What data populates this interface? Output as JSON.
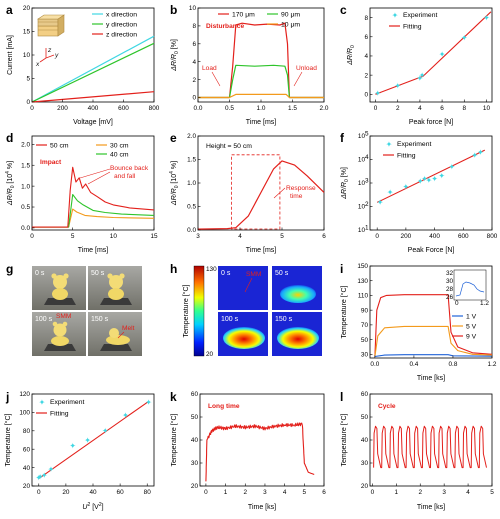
{
  "colors": {
    "red": "#e3201b",
    "green": "#2ec42b",
    "orange": "#f39a1c",
    "cyan": "#40d7e3",
    "blue": "#2063d8",
    "navy": "#1a1aa0",
    "dark": "#1a1a1a"
  },
  "panels": {
    "a": {
      "label": "a",
      "xlabel": "Voltage [mV]",
      "ylabel": "Current [mA]",
      "xticks": [
        "0",
        "200",
        "400",
        "600",
        "800"
      ],
      "yticks": [
        "0",
        "5",
        "10",
        "15",
        "20"
      ],
      "legend": [
        "x direction",
        "y direction",
        "z direction"
      ],
      "axes": {
        "x": "x",
        "y": "y",
        "z": "z"
      }
    },
    "b": {
      "label": "b",
      "title": "Disturbance",
      "xlabel": "Time [ms]",
      "ylabel": "ΔR/R",
      "ylabel_sub": "0",
      "ylabel_unit": " [%]",
      "xticks": [
        "0.0",
        "0.5",
        "1.0",
        "1.5",
        "2.0"
      ],
      "yticks": [
        "0",
        "2",
        "4",
        "6",
        "8",
        "10"
      ],
      "legend": [
        "170 μm",
        "90 μm",
        "10 μm"
      ],
      "annotations": [
        "Load",
        "Unload"
      ]
    },
    "c": {
      "label": "c",
      "xlabel": "Peak force [N]",
      "ylabel": "ΔR/R",
      "ylabel_sub": "0",
      "xticks": [
        "0",
        "2",
        "4",
        "6",
        "8",
        "10"
      ],
      "yticks": [
        "0",
        "2",
        "4",
        "6",
        "8"
      ],
      "legend": [
        "Experiment",
        "Fitting"
      ]
    },
    "d": {
      "label": "d",
      "title": "Impact",
      "xlabel": "Time [ms]",
      "ylabel": "ΔR/R",
      "ylabel_sub": "0",
      "ylabel_unit": " [10",
      "ylabel_exp": "4",
      "ylabel_end": " %]",
      "xticks": [
        "0",
        "5",
        "10",
        "15"
      ],
      "yticks": [
        "0.0",
        "0.5",
        "1.0",
        "1.5",
        "2.0"
      ],
      "legend": [
        "50 cm",
        "30 cm",
        "40 cm"
      ],
      "annotations": [
        "Bounce back",
        "and fall"
      ]
    },
    "e": {
      "label": "e",
      "title": "Height = 50 cm",
      "xlabel": "Time [ms]",
      "ylabel": "ΔR/R",
      "ylabel_sub": "0",
      "ylabel_unit": " [10",
      "ylabel_exp": "4",
      "ylabel_end": " %]",
      "xticks": [
        "3",
        "4",
        "5",
        "6"
      ],
      "yticks": [
        "0.0",
        "0.5",
        "1.0",
        "1.5",
        "2.0"
      ],
      "annotations": [
        "Response",
        "time"
      ]
    },
    "f": {
      "label": "f",
      "xlabel": "Peak Force [N]",
      "ylabel": "ΔR/R",
      "ylabel_sub": "0",
      "ylabel_unit": " [%]",
      "xticks": [
        "0",
        "200",
        "400",
        "600",
        "800"
      ],
      "yticks": [
        "10",
        "10",
        "10",
        "10",
        "10"
      ],
      "ytick_exps": [
        "1",
        "2",
        "3",
        "4",
        "5"
      ],
      "legend": [
        "Experiment",
        "Fitting"
      ]
    },
    "g": {
      "label": "g",
      "photo_labels": [
        "0 s",
        "50 s",
        "100 s",
        "150 s"
      ],
      "annotations": [
        "SMM",
        "Melt"
      ]
    },
    "h": {
      "label": "h",
      "colorbar_label": "Temperature [°C]",
      "colorbar_ticks": [
        "130",
        "20"
      ],
      "photo_labels": [
        "0 s",
        "50 s",
        "100 s",
        "150 s"
      ],
      "annotations": [
        "SMM"
      ]
    },
    "i": {
      "label": "i",
      "xlabel": "Time [ks]",
      "ylabel": "Temperature [°C]",
      "xticks": [
        "0.0",
        "0.4",
        "0.8",
        "1.2"
      ],
      "yticks": [
        "30",
        "50",
        "70",
        "90",
        "110",
        "130",
        "150"
      ],
      "legend": [
        "1 V",
        "5 V",
        "9 V"
      ],
      "inset_xticks": [
        "0",
        "1.2"
      ],
      "inset_yticks": [
        "26",
        "28",
        "30",
        "32"
      ]
    },
    "j": {
      "label": "j",
      "xlabel": "U",
      "xlabel_exp": "2",
      "xlabel_unit": " [V",
      "xlabel_unit_exp": "2",
      "xlabel_end": "]",
      "ylabel": "Temperature [°C]",
      "xticks": [
        "0",
        "20",
        "40",
        "60",
        "80"
      ],
      "yticks": [
        "20",
        "40",
        "60",
        "80",
        "100",
        "120"
      ],
      "legend": [
        "Experiment",
        "Fitting"
      ]
    },
    "k": {
      "label": "k",
      "title": "Long time",
      "xlabel": "Time [ks]",
      "ylabel": "Temperature [°C]",
      "xticks": [
        "0",
        "1",
        "2",
        "3",
        "4",
        "5",
        "6"
      ],
      "yticks": [
        "20",
        "30",
        "40",
        "50",
        "60"
      ]
    },
    "l": {
      "label": "l",
      "title": "Cycle",
      "xlabel": "Time [ks]",
      "ylabel": "Temperature [°C]",
      "xticks": [
        "0",
        "1",
        "2",
        "3",
        "4",
        "5"
      ],
      "yticks": [
        "20",
        "30",
        "40",
        "50",
        "60"
      ]
    }
  },
  "chart_data": [
    {
      "panel": "a",
      "type": "line",
      "xlim": [
        0,
        800
      ],
      "ylim": [
        0,
        20
      ],
      "series": [
        {
          "name": "x direction",
          "color": "cyan",
          "x": [
            0,
            800
          ],
          "y": [
            0,
            14
          ]
        },
        {
          "name": "y direction",
          "color": "green",
          "x": [
            0,
            800
          ],
          "y": [
            0,
            12.5
          ]
        },
        {
          "name": "z direction",
          "color": "red",
          "x": [
            0,
            800
          ],
          "y": [
            0,
            2.2
          ]
        }
      ]
    },
    {
      "panel": "b",
      "type": "line",
      "xlim": [
        0,
        2
      ],
      "ylim": [
        -0.5,
        10
      ],
      "series": [
        {
          "name": "170 μm",
          "color": "red",
          "x": [
            0,
            0.5,
            0.55,
            0.6,
            0.7,
            0.9,
            1.1,
            1.3,
            1.38,
            1.42,
            1.45,
            1.5,
            2
          ],
          "y": [
            0,
            0,
            3.5,
            8.1,
            8.3,
            8.1,
            8.2,
            8.1,
            8.3,
            6,
            0,
            0,
            0
          ]
        },
        {
          "name": "90 μm",
          "color": "green",
          "x": [
            0,
            0.5,
            0.55,
            0.6,
            0.9,
            1.2,
            1.38,
            1.42,
            1.45,
            1.5,
            2
          ],
          "y": [
            0,
            0,
            2,
            3.6,
            3.5,
            3.6,
            3.5,
            2.5,
            0,
            0,
            0
          ]
        },
        {
          "name": "10 μm",
          "color": "orange",
          "x": [
            0,
            0.5,
            0.6,
            1.4,
            1.45,
            2
          ],
          "y": [
            0,
            0,
            0.35,
            0.35,
            0,
            0
          ]
        }
      ]
    },
    {
      "panel": "c",
      "type": "scatter",
      "xlim": [
        -0.5,
        10.5
      ],
      "ylim": [
        -0.8,
        9
      ],
      "series": [
        {
          "name": "Experiment",
          "color": "cyan",
          "x": [
            0.2,
            2,
            4,
            4.2,
            6,
            8,
            10
          ],
          "y": [
            0.1,
            0.9,
            1.7,
            2,
            4.2,
            5.9,
            8
          ]
        },
        {
          "name": "Fitting",
          "color": "red",
          "x": [
            0,
            4.3,
            10.4
          ],
          "y": [
            0,
            1.9,
            8.6
          ]
        }
      ]
    },
    {
      "panel": "d",
      "type": "line",
      "xlim": [
        0,
        15
      ],
      "ylim": [
        -0.05,
        2.2
      ],
      "series": [
        {
          "name": "50 cm",
          "color": "red",
          "x": [
            0,
            4.4,
            4.7,
            5.0,
            5.4,
            5.8,
            6.2,
            6.6,
            7.2,
            8,
            9,
            10,
            12,
            15
          ],
          "y": [
            0.02,
            0.02,
            0.9,
            1.45,
            1.1,
            1.2,
            0.95,
            1.05,
            0.85,
            0.75,
            0.62,
            0.55,
            0.48,
            0.43
          ]
        },
        {
          "name": "30 cm",
          "color": "orange",
          "x": [
            0,
            4.5,
            5,
            5.5,
            6.5,
            8,
            10,
            15
          ],
          "y": [
            0.02,
            0.02,
            0.45,
            0.38,
            0.3,
            0.27,
            0.25,
            0.23
          ]
        },
        {
          "name": "40 cm",
          "color": "green",
          "x": [
            0,
            4.5,
            5,
            5.6,
            6.3,
            7.5,
            9,
            11,
            15
          ],
          "y": [
            0.02,
            0.02,
            0.8,
            0.65,
            0.55,
            0.42,
            0.37,
            0.33,
            0.3
          ]
        }
      ]
    },
    {
      "panel": "e",
      "type": "line",
      "xlim": [
        3,
        6
      ],
      "ylim": [
        0,
        2
      ],
      "series": [
        {
          "name": "",
          "color": "red",
          "x": [
            3,
            3.7,
            3.9,
            4.2,
            4.5,
            4.8,
            5.0,
            5.3,
            5.6,
            6
          ],
          "y": [
            0.02,
            0.03,
            0.05,
            0.3,
            0.8,
            1.3,
            1.47,
            1.38,
            1.15,
            0.8
          ]
        }
      ]
    },
    {
      "panel": "f",
      "type": "scatter",
      "xlim": [
        -50,
        800
      ],
      "ylim_log10": [
        1,
        5
      ],
      "series": [
        {
          "name": "Experiment",
          "color": "cyan",
          "x": [
            20,
            90,
            200,
            300,
            330,
            360,
            400,
            450,
            520,
            680,
            720
          ],
          "y": [
            150,
            400,
            700,
            1200,
            1500,
            1300,
            1500,
            2000,
            5000,
            15000,
            20000
          ]
        },
        {
          "name": "Fitting",
          "color": "red",
          "x": [
            0,
            750
          ],
          "y": [
            150,
            25000
          ]
        }
      ]
    },
    {
      "panel": "i",
      "type": "line",
      "xlim": [
        -0.05,
        1.2
      ],
      "ylim": [
        25,
        150
      ],
      "series": [
        {
          "name": "9 V",
          "color": "red",
          "x": [
            0,
            0.02,
            0.06,
            0.12,
            0.3,
            0.6,
            0.75,
            0.78,
            0.85,
            1.0,
            1.2
          ],
          "y": [
            27,
            90,
            107,
            110,
            111,
            111,
            111,
            60,
            40,
            32,
            30
          ]
        },
        {
          "name": "5 V",
          "color": "orange",
          "x": [
            0,
            0.03,
            0.1,
            0.3,
            0.75,
            0.78,
            0.85,
            1.0,
            1.2
          ],
          "y": [
            27,
            55,
            66,
            68,
            68,
            45,
            35,
            30,
            29
          ]
        },
        {
          "name": "1 V",
          "color": "blue",
          "x": [
            0,
            0.1,
            0.3,
            0.75,
            0.8,
            1.2
          ],
          "y": [
            27,
            29,
            29.5,
            29.5,
            28,
            27.5
          ]
        }
      ]
    },
    {
      "panel": "j",
      "type": "scatter",
      "xlim": [
        -5,
        85
      ],
      "ylim": [
        20,
        120
      ],
      "series": [
        {
          "name": "Experiment",
          "color": "cyan",
          "x": [
            0,
            1,
            4,
            9,
            25,
            36,
            49,
            64,
            81
          ],
          "y": [
            29,
            30,
            32,
            38,
            64,
            70,
            80,
            97,
            111
          ]
        },
        {
          "name": "Fitting",
          "color": "red",
          "x": [
            0,
            81
          ],
          "y": [
            28,
            112
          ]
        }
      ]
    },
    {
      "panel": "k",
      "type": "line",
      "xlim": [
        -0.3,
        6
      ],
      "ylim": [
        20,
        60
      ],
      "series": [
        {
          "name": "",
          "color": "red",
          "x": [
            0,
            0.05,
            0.3,
            0.6,
            1,
            1.5,
            2,
            2.5,
            3,
            3.5,
            4,
            4.5,
            4.9,
            5.0,
            5.2,
            5.5
          ],
          "y": [
            22,
            40,
            44,
            45.5,
            45,
            46,
            45.5,
            46,
            45,
            46,
            46.5,
            46.5,
            47,
            30,
            26,
            25
          ]
        }
      ]
    },
    {
      "panel": "l",
      "type": "line",
      "xlim": [
        -0.1,
        5
      ],
      "ylim": [
        20,
        60
      ],
      "cycles": 14,
      "cycle_period_ks": 0.34,
      "high": 46,
      "low": 28
    }
  ]
}
